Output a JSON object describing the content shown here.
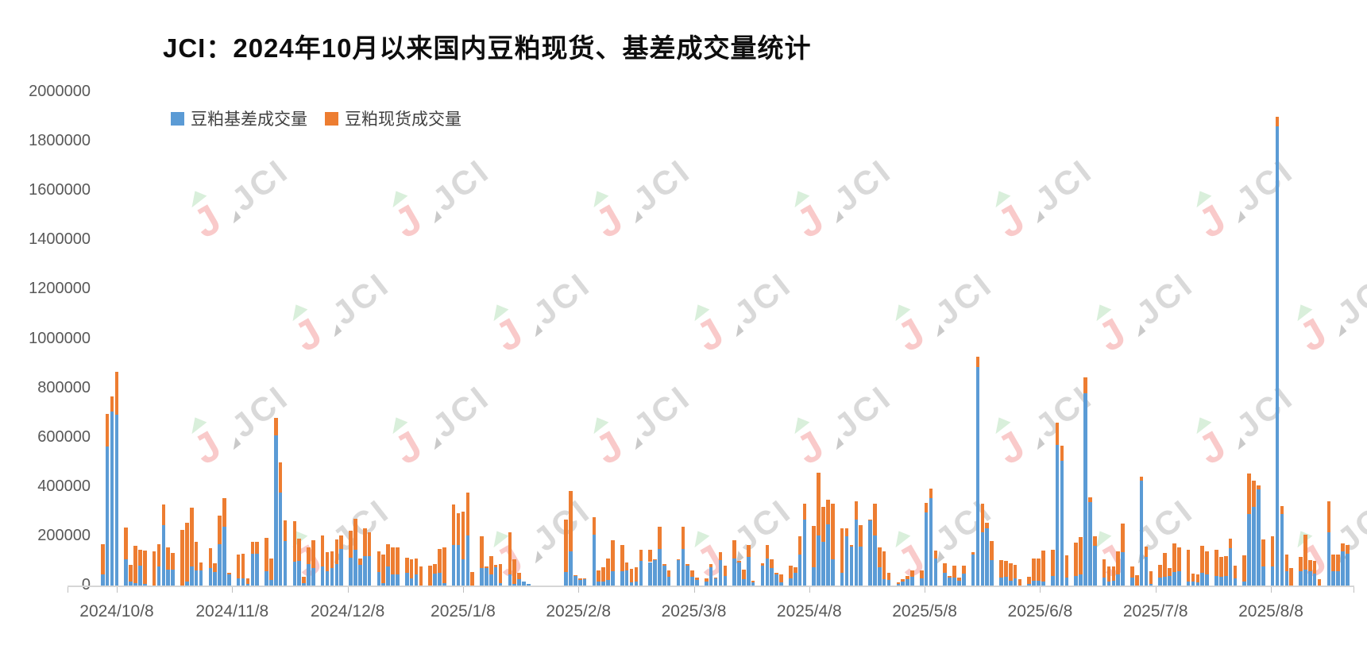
{
  "title": "JCI：2024年10月以来国内豆粕现货、基差成交量统计",
  "legend": [
    {
      "label": "豆粕基差成交量",
      "color": "#5B9BD5"
    },
    {
      "label": "豆粕现货成交量",
      "color": "#ED7D31"
    }
  ],
  "watermark": {
    "text": "JCI"
  },
  "chart_data": {
    "type": "bar",
    "stacked": true,
    "title": "JCI：2024年10月以来国内豆粕现货、基差成交量统计",
    "series_names": [
      "豆粕基差成交量",
      "豆粕现货成交量"
    ],
    "colors": {
      "basis_blue": "#5B9BD5",
      "spot_orange": "#ED7D31",
      "axis_text": "#595959",
      "axis_line": "#d6d6d6"
    },
    "ylim": [
      0,
      2000000
    ],
    "grid": false,
    "legend_position": "top-left-inside",
    "y_ticks": [
      "2000000",
      "1800000",
      "1600000",
      "1400000",
      "1200000",
      "1000000",
      "800000",
      "600000",
      "400000",
      "200000",
      "0"
    ],
    "x_tick_labels": [
      "2024/10/8",
      "2024/11/8",
      "2024/12/8",
      "2025/1/8",
      "2025/2/8",
      "2025/3/8",
      "2025/4/8",
      "2025/5/8",
      "2025/6/8",
      "2025/7/8",
      "2025/8/8"
    ],
    "note": "weeks = weekly groups of trading days; each bar = [basis_volume_blue, spot_volume_orange]",
    "holiday_gap_after_week": 16,
    "holiday_gap_slots": 6,
    "weeks": [
      [
        [
          44000,
          123000
        ],
        [
          565000,
          130000
        ],
        [
          705000,
          61000
        ],
        [
          692000,
          174000
        ]
      ],
      [
        [
          106000,
          129000
        ],
        [
          17000,
          68000
        ],
        [
          10000,
          150000
        ],
        [
          81000,
          64000
        ],
        [
          5000,
          137000
        ]
      ],
      [
        [
          0,
          140000
        ],
        [
          76000,
          91000
        ],
        [
          245000,
          83000
        ],
        [
          63000,
          90000
        ],
        [
          63000,
          69000
        ]
      ],
      [
        [
          0,
          226000
        ],
        [
          17000,
          237000
        ],
        [
          76000,
          239000
        ],
        [
          60000,
          118000
        ],
        [
          60000,
          32000
        ]
      ],
      [
        [
          71000,
          80000
        ],
        [
          55000,
          34000
        ],
        [
          167000,
          116000
        ],
        [
          238000,
          116000
        ],
        [
          44000,
          8000
        ]
      ],
      [
        [
          30000,
          97000
        ],
        [
          30000,
          100000
        ],
        [
          5000,
          23000
        ],
        [
          130000,
          47000
        ],
        [
          130000,
          47000
        ]
      ],
      [
        [
          59000,
          135000
        ],
        [
          21000,
          89000
        ],
        [
          610000,
          70000
        ],
        [
          376000,
          124000
        ],
        [
          180000,
          85000
        ]
      ],
      [
        [
          97000,
          163000
        ],
        [
          99000,
          92000
        ],
        [
          10000,
          25000
        ],
        [
          86000,
          70000
        ],
        [
          70000,
          115000
        ]
      ],
      [
        [
          77000,
          125000
        ],
        [
          59000,
          75000
        ],
        [
          70000,
          70000
        ],
        [
          88000,
          100000
        ],
        [
          147000,
          57000
        ]
      ],
      [
        [
          113000,
          109000
        ],
        [
          145000,
          126000
        ],
        [
          84000,
          26000
        ],
        [
          118000,
          113000
        ],
        [
          120000,
          95000
        ]
      ],
      [
        [
          56000,
          81000
        ],
        [
          11000,
          113000
        ],
        [
          77000,
          90000
        ],
        [
          45000,
          111000
        ],
        [
          45000,
          110000
        ]
      ],
      [
        [
          52000,
          61000
        ],
        [
          30000,
          75000
        ],
        [
          45000,
          65000
        ],
        [
          0,
          77000
        ]
      ],
      [
        [
          0,
          80000
        ],
        [
          48000,
          40000
        ],
        [
          52000,
          96000
        ],
        [
          10000,
          145000
        ]
      ],
      [
        [
          163000,
          165000
        ],
        [
          163000,
          129000
        ],
        [
          105000,
          193000
        ],
        [
          204000,
          172000
        ],
        [
          0,
          56000
        ]
      ],
      [
        [
          70000,
          129000
        ],
        [
          70000,
          7000
        ],
        [
          45000,
          75000
        ],
        [
          75000,
          9000
        ],
        [
          9000,
          79000
        ]
      ],
      [
        [
          45000,
          172000
        ],
        [
          8000,
          97000
        ],
        [
          27000,
          25000
        ],
        [
          16000,
          0
        ],
        [
          6000,
          0
        ]
      ],
      [
        [
          56000,
          210000
        ],
        [
          140000,
          242000
        ],
        [
          38000,
          4000
        ],
        [
          24000,
          4000
        ],
        [
          27000,
          3000
        ]
      ],
      [
        [
          206000,
          71000
        ],
        [
          16000,
          45000
        ],
        [
          16000,
          57000
        ],
        [
          24000,
          86000
        ],
        [
          59000,
          126000
        ]
      ],
      [
        [
          59000,
          104000
        ],
        [
          62000,
          33000
        ],
        [
          13000,
          54000
        ],
        [
          16000,
          57000
        ],
        [
          99000,
          46000
        ]
      ],
      [
        [
          95000,
          50000
        ],
        [
          102000,
          5000
        ],
        [
          148000,
          89000
        ],
        [
          81000,
          7000
        ],
        [
          34000,
          28000
        ]
      ],
      [
        [
          102000,
          3000
        ],
        [
          148000,
          89000
        ],
        [
          81000,
          7000
        ],
        [
          34000,
          28000
        ],
        [
          22000,
          11000
        ]
      ],
      [
        [
          17000,
          11000
        ],
        [
          74000,
          13000
        ],
        [
          28000,
          3000
        ],
        [
          103000,
          32000
        ],
        [
          39000,
          43000
        ]
      ],
      [
        [
          110000,
          73000
        ],
        [
          92000,
          9000
        ],
        [
          25000,
          40000
        ],
        [
          117000,
          47000
        ],
        [
          12000,
          8000
        ]
      ],
      [
        [
          82000,
          7000
        ],
        [
          110000,
          54000
        ],
        [
          70000,
          35000
        ],
        [
          45000,
          8000
        ],
        [
          12000,
          34000
        ]
      ],
      [
        [
          28000,
          54000
        ],
        [
          53000,
          21000
        ],
        [
          124000,
          76000
        ],
        [
          266000,
          66000
        ]
      ],
      [
        [
          75000,
          167000
        ],
        [
          202000,
          255000
        ],
        [
          177000,
          143000
        ],
        [
          249000,
          100000
        ],
        [
          105000,
          228000
        ]
      ],
      [
        [
          52000,
          181000
        ],
        [
          199000,
          32000
        ],
        [
          159000,
          4000
        ],
        [
          267000,
          74000
        ],
        [
          159000,
          86000
        ]
      ],
      [
        [
          263000,
          4000
        ],
        [
          202000,
          131000
        ],
        [
          75000,
          78000
        ],
        [
          27000,
          113000
        ],
        [
          21000,
          31000
        ]
      ],
      [
        [
          5000,
          8000
        ],
        [
          16000,
          11000
        ],
        [
          27000,
          11000
        ],
        [
          35000,
          25000
        ]
      ],
      [
        [
          28000,
          32000
        ],
        [
          296000,
          40000
        ],
        [
          355000,
          38000
        ],
        [
          111000,
          32000
        ]
      ],
      [
        [
          53000,
          36000
        ],
        [
          33000,
          6000
        ],
        [
          31000,
          51000
        ],
        [
          20000,
          11000
        ],
        [
          49000,
          33000
        ]
      ],
      [
        [
          125000,
          10000
        ],
        [
          886000,
          43000
        ],
        [
          216000,
          116000
        ],
        [
          232000,
          21000
        ],
        [
          103000,
          78000
        ]
      ],
      [
        [
          33000,
          70000
        ],
        [
          35000,
          65000
        ],
        [
          20000,
          69000
        ],
        [
          28000,
          57000
        ],
        [
          0,
          27000
        ]
      ],
      [
        [
          5000,
          30000
        ],
        [
          20000,
          91000
        ],
        [
          20000,
          91000
        ],
        [
          17000,
          124000
        ]
      ],
      [
        [
          39000,
          107000
        ],
        [
          570000,
          91000
        ],
        [
          507000,
          61000
        ],
        [
          33000,
          88000
        ]
      ],
      [
        [
          39000,
          136000
        ],
        [
          44000,
          152000
        ],
        [
          780000,
          64000
        ],
        [
          339000,
          18000
        ],
        [
          160000,
          40000
        ]
      ],
      [
        [
          33000,
          73000
        ],
        [
          17000,
          61000
        ],
        [
          20000,
          58000
        ],
        [
          44000,
          94000
        ],
        [
          135000,
          115000
        ]
      ],
      [
        [
          33000,
          45000
        ],
        [
          0,
          42000
        ],
        [
          425000,
          16000
        ],
        [
          117000,
          40000
        ],
        [
          5000,
          52000
        ]
      ],
      [
        [
          31000,
          54000
        ],
        [
          35000,
          97000
        ],
        [
          39000,
          32000
        ],
        [
          55000,
          116000
        ],
        [
          57000,
          96000
        ]
      ],
      [
        [
          15000,
          131000
        ],
        [
          17000,
          32000
        ],
        [
          14000,
          30000
        ],
        [
          53000,
          107000
        ],
        [
          46000,
          92000
        ]
      ],
      [
        [
          39000,
          107000
        ],
        [
          35000,
          82000
        ],
        [
          39000,
          81000
        ],
        [
          150000,
          40000
        ],
        [
          30000,
          50000
        ]
      ],
      [
        [
          15000,
          108000
        ],
        [
          290000,
          165000
        ],
        [
          320000,
          105000
        ],
        [
          390000,
          17000
        ],
        [
          77000,
          110000
        ]
      ],
      [
        [
          77000,
          122000
        ],
        [
          1860000,
          40000
        ],
        [
          290000,
          32000
        ],
        [
          57000,
          70000
        ],
        [
          0,
          70000
        ]
      ],
      [
        [
          57000,
          60000
        ],
        [
          66000,
          139000
        ],
        [
          57000,
          46000
        ],
        [
          48000,
          53000
        ],
        [
          0,
          26000
        ]
      ],
      [
        [
          215000,
          127000
        ],
        [
          57000,
          70000
        ],
        [
          57000,
          70000
        ],
        [
          137000,
          33000
        ],
        [
          130000,
          33000
        ]
      ]
    ]
  }
}
